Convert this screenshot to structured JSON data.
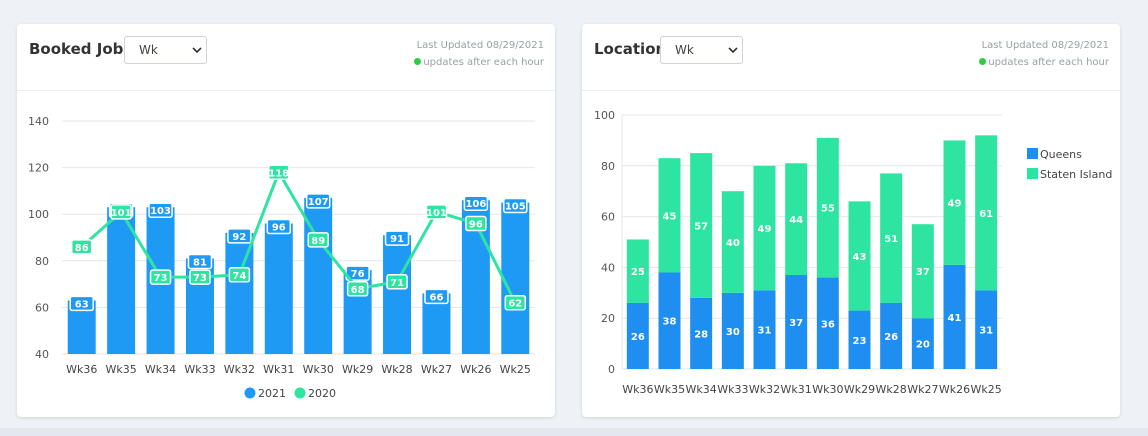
{
  "cards": [
    {
      "title": "Booked Jobs",
      "select_value": "Wk",
      "last_updated": "Last Updated 08/29/2021",
      "update_note": "updates after each hour"
    },
    {
      "title": "Location",
      "select_value": "Wk",
      "last_updated": "Last Updated 08/29/2021",
      "update_note": "updates after each hour"
    }
  ],
  "chart_data": [
    {
      "type": "bar",
      "categories": [
        "Wk36",
        "Wk35",
        "Wk34",
        "Wk33",
        "Wk32",
        "Wk31",
        "Wk30",
        "Wk29",
        "Wk28",
        "Wk27",
        "Wk26",
        "Wk25"
      ],
      "series": [
        {
          "name": "2021",
          "type": "bar",
          "color": "#1e9af5",
          "values": [
            63,
            103,
            103,
            81,
            92,
            96,
            107,
            76,
            91,
            66,
            106,
            105
          ]
        },
        {
          "name": "2020",
          "type": "line",
          "color": "#2de5a0",
          "values": [
            86,
            101,
            73,
            73,
            74,
            118,
            89,
            68,
            71,
            101,
            96,
            62
          ]
        }
      ],
      "ylim": [
        40,
        140
      ],
      "yticks": [
        40,
        60,
        80,
        100,
        120,
        140
      ],
      "legend": "bottom",
      "grid": true
    },
    {
      "type": "bar",
      "stacked": true,
      "categories": [
        "Wk36",
        "Wk35",
        "Wk34",
        "Wk33",
        "Wk32",
        "Wk31",
        "Wk30",
        "Wk29",
        "Wk28",
        "Wk27",
        "Wk26",
        "Wk25"
      ],
      "series": [
        {
          "name": "Queens",
          "color": "#1e8ff0",
          "values": [
            26,
            38,
            28,
            30,
            31,
            37,
            36,
            23,
            26,
            20,
            41,
            31
          ]
        },
        {
          "name": "Staten Island",
          "color": "#2de5a0",
          "values": [
            25,
            45,
            57,
            40,
            49,
            44,
            55,
            43,
            51,
            37,
            49,
            61
          ]
        }
      ],
      "ylim": [
        0,
        100
      ],
      "yticks": [
        0,
        20,
        40,
        60,
        80,
        100
      ],
      "legend": "right",
      "grid": true
    }
  ]
}
